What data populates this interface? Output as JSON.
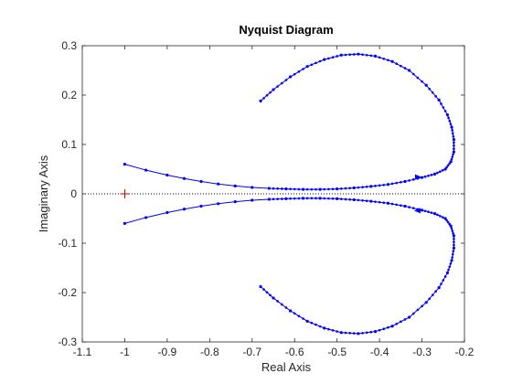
{
  "chart_data": {
    "type": "scatter",
    "title": "Nyquist Diagram",
    "xlabel": "Real Axis",
    "ylabel": "Imaginary Axis",
    "xlim": [
      -1.1,
      -0.2
    ],
    "ylim": [
      -0.3,
      0.3
    ],
    "xticks": [
      -1.1,
      -1,
      -0.9,
      -0.8,
      -0.7,
      -0.6,
      -0.5,
      -0.4,
      -0.3,
      -0.2
    ],
    "xtick_labels": [
      "-1.1",
      "-1",
      "-0.9",
      "-0.8",
      "-0.7",
      "-0.6",
      "-0.5",
      "-0.4",
      "-0.3",
      "-0.2"
    ],
    "yticks": [
      -0.3,
      -0.2,
      -0.1,
      0,
      0.1,
      0.2,
      0.3
    ],
    "ytick_labels": [
      "-0.3",
      "-0.2",
      "-0.1",
      "0",
      "0.1",
      "0.2",
      "0.3"
    ],
    "grid": false,
    "critical_point": {
      "x": -1,
      "y": 0,
      "marker": "+",
      "color": "#c00000"
    },
    "zero_line": {
      "y": 0,
      "style": "dotted",
      "color": "#000000"
    },
    "line_color": "#0000ff",
    "series": [
      {
        "x": [
          -1.0,
          -0.95,
          -0.9,
          -0.86,
          -0.82,
          -0.78,
          -0.74,
          -0.7,
          -0.66,
          -0.62,
          -0.58,
          -0.54,
          -0.5,
          -0.46,
          -0.42,
          -0.38,
          -0.34,
          -0.3,
          -0.27,
          -0.245,
          -0.232,
          -0.225,
          -0.225,
          -0.23,
          -0.24,
          -0.26,
          -0.29,
          -0.33,
          -0.37,
          -0.41,
          -0.45,
          -0.49,
          -0.53,
          -0.57,
          -0.61,
          -0.65,
          -0.68
        ],
        "y": [
          0.06,
          0.048,
          0.038,
          0.031,
          0.025,
          0.02,
          0.016,
          0.013,
          0.011,
          0.01,
          0.009,
          0.009,
          0.01,
          0.012,
          0.015,
          0.019,
          0.025,
          0.033,
          0.04,
          0.05,
          0.065,
          0.085,
          0.11,
          0.135,
          0.16,
          0.19,
          0.22,
          0.25,
          0.268,
          0.279,
          0.283,
          0.281,
          0.272,
          0.258,
          0.237,
          0.211,
          0.188
        ]
      },
      {
        "x": [
          -1.0,
          -0.95,
          -0.9,
          -0.86,
          -0.82,
          -0.78,
          -0.74,
          -0.7,
          -0.66,
          -0.62,
          -0.58,
          -0.54,
          -0.5,
          -0.46,
          -0.42,
          -0.38,
          -0.34,
          -0.3,
          -0.27,
          -0.245,
          -0.232,
          -0.225,
          -0.225,
          -0.23,
          -0.24,
          -0.26,
          -0.29,
          -0.33,
          -0.37,
          -0.41,
          -0.45,
          -0.49,
          -0.53,
          -0.57,
          -0.61,
          -0.65,
          -0.68
        ],
        "y": [
          -0.06,
          -0.048,
          -0.038,
          -0.031,
          -0.025,
          -0.02,
          -0.016,
          -0.013,
          -0.011,
          -0.01,
          -0.009,
          -0.009,
          -0.01,
          -0.012,
          -0.015,
          -0.019,
          -0.025,
          -0.033,
          -0.04,
          -0.05,
          -0.065,
          -0.085,
          -0.11,
          -0.135,
          -0.16,
          -0.19,
          -0.22,
          -0.25,
          -0.268,
          -0.279,
          -0.283,
          -0.281,
          -0.272,
          -0.258,
          -0.237,
          -0.211,
          -0.188
        ]
      }
    ],
    "arrows": [
      {
        "x": -0.31,
        "y": 0.034,
        "direction": "right"
      },
      {
        "x": -0.31,
        "y": -0.034,
        "direction": "left"
      }
    ]
  }
}
